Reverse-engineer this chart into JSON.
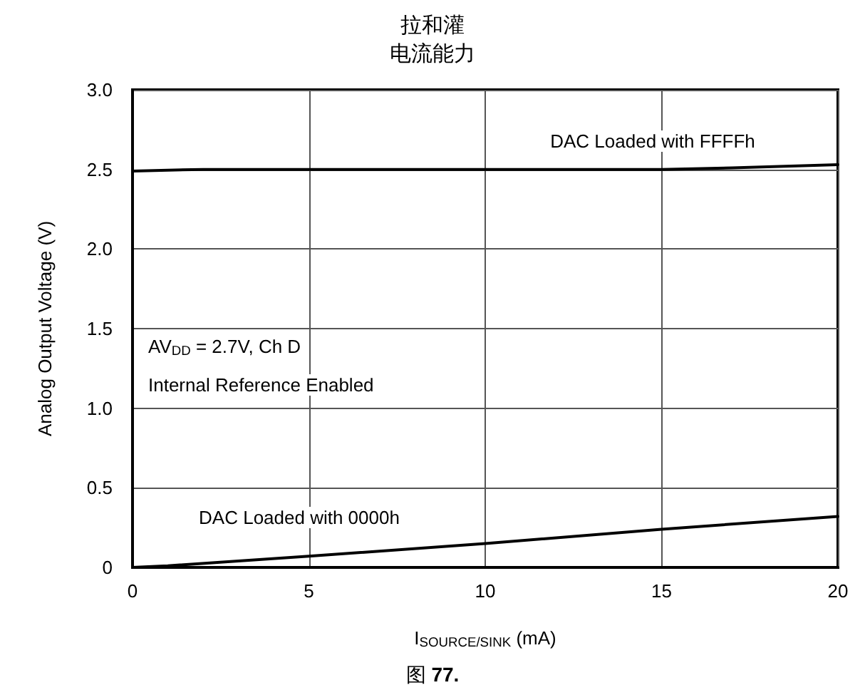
{
  "chart_data": {
    "type": "line",
    "title": "拉和灌",
    "subtitle": "电流能力",
    "xlabel": "I$_{SOURCE/SINK}$ (mA)",
    "ylabel": "Analog Output Voltage (V)",
    "xlim": [
      0,
      20
    ],
    "xticks": [
      0,
      5,
      10,
      15,
      20
    ],
    "ylim": [
      0,
      3
    ],
    "yticks": [
      {
        "value": 0,
        "label": "0"
      },
      {
        "value": 0.5,
        "label": "0.5"
      },
      {
        "value": 1,
        "label": "1.0"
      },
      {
        "value": 1.5,
        "label": "1.5"
      },
      {
        "value": 2,
        "label": "2.0"
      },
      {
        "value": 2.5,
        "label": "2.5"
      },
      {
        "value": 3,
        "label": "3.0"
      }
    ],
    "grid": true,
    "marker": "none",
    "line_style": "solid",
    "series": [
      {
        "color": "#000000",
        "x": [
          0,
          2,
          5,
          10,
          15,
          17,
          20
        ],
        "values": [
          2.49,
          2.5,
          2.5,
          2.5,
          2.5,
          2.51,
          2.53
        ]
      },
      {
        "color": "#000000",
        "x": [
          0,
          1,
          5,
          10,
          15,
          20
        ],
        "values": [
          0,
          0.01,
          0.07,
          0.15,
          0.24,
          0.32
        ]
      }
    ],
    "annotations": [
      "DAC Loaded with FFFFh",
      "DAC Loaded with 0000h",
      "AV$_{DD}$ = 2.7V, Ch D",
      "Internal Reference Enabled",
      "图 77."
    ]
  }
}
